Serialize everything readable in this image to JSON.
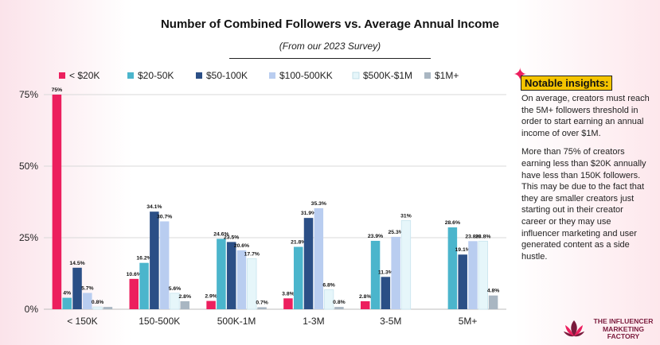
{
  "chart_data": {
    "type": "bar",
    "title": "Number of Combined Followers vs. Average Annual Income",
    "subtitle": "(From our 2023 Survey)",
    "xlabel": "",
    "ylabel": "",
    "ylim": [
      0,
      75
    ],
    "yticks": [
      0,
      25,
      50,
      75
    ],
    "ytick_labels": [
      "0%",
      "25%",
      "50%",
      "75%"
    ],
    "grid": true,
    "legend_position": "top",
    "categories": [
      "< 150K",
      "150-500K",
      "500K-1M",
      "1-3M",
      "3-5M",
      "5M+"
    ],
    "series": [
      {
        "name": "< $20K",
        "color": "#ec1f5e",
        "values": [
          75,
          10.6,
          2.9,
          3.8,
          2.8,
          null
        ],
        "labels": [
          "75%",
          "10.6%",
          "2.9%",
          "3.8%",
          "2.8%",
          ""
        ]
      },
      {
        "name": "$20-50K",
        "color": "#4bb5cc",
        "values": [
          4,
          16.2,
          24.6,
          21.8,
          23.9,
          28.6
        ],
        "labels": [
          "4%",
          "16.2%",
          "24.6%",
          "21.8%",
          "23.9%",
          "28.6%"
        ]
      },
      {
        "name": "$50-100K",
        "color": "#2b4f86",
        "values": [
          14.5,
          34.1,
          23.5,
          31.9,
          11.3,
          19.1
        ],
        "labels": [
          "14.5%",
          "34.1%",
          "23.5%",
          "31.9%",
          "11.3%",
          "19.1%"
        ]
      },
      {
        "name": "$100-500KK",
        "color": "#b9cdf0",
        "values": [
          5.7,
          30.7,
          20.6,
          35.3,
          25.3,
          23.8
        ],
        "labels": [
          "5.7%",
          "30.7%",
          "20.6%",
          "35.3%",
          "25.3%",
          "23.8%"
        ]
      },
      {
        "name": "$500K-$1M",
        "color": "#e6f6fa",
        "values": [
          0.8,
          5.6,
          17.7,
          6.8,
          31,
          23.8
        ],
        "labels": [
          "0.8%",
          "5.6%",
          "17.7%",
          "6.8%",
          "31%",
          "23.8%"
        ]
      },
      {
        "name": "$1M+",
        "color": "#a9b6c2",
        "values": [
          0.8,
          2.8,
          0.7,
          0.8,
          null,
          4.8
        ],
        "labels": [
          "",
          "2.8%",
          "0.7%",
          "0.8%",
          "",
          "4.8%"
        ]
      }
    ]
  },
  "insights": {
    "heading": "Notable insights:",
    "paragraphs": [
      "On average, creators must reach the 5M+ followers threshold in order to start earning an annual income of over $1M.",
      "More than 75% of creators earning less than $20K annually have less than 150K followers. This may be due to the fact that they are smaller creators just starting out in their creator career or they may use influencer marketing and user generated content as a side hustle."
    ]
  },
  "brand": {
    "name_lines": [
      "THE INFLUENCER",
      "MARKETING",
      "FACTORY"
    ],
    "logo_icon": "lotus-logo-icon",
    "colors": {
      "primary": "#7a1a3c",
      "accent": "#ec1f5e",
      "highlight": "#f5c400"
    }
  }
}
